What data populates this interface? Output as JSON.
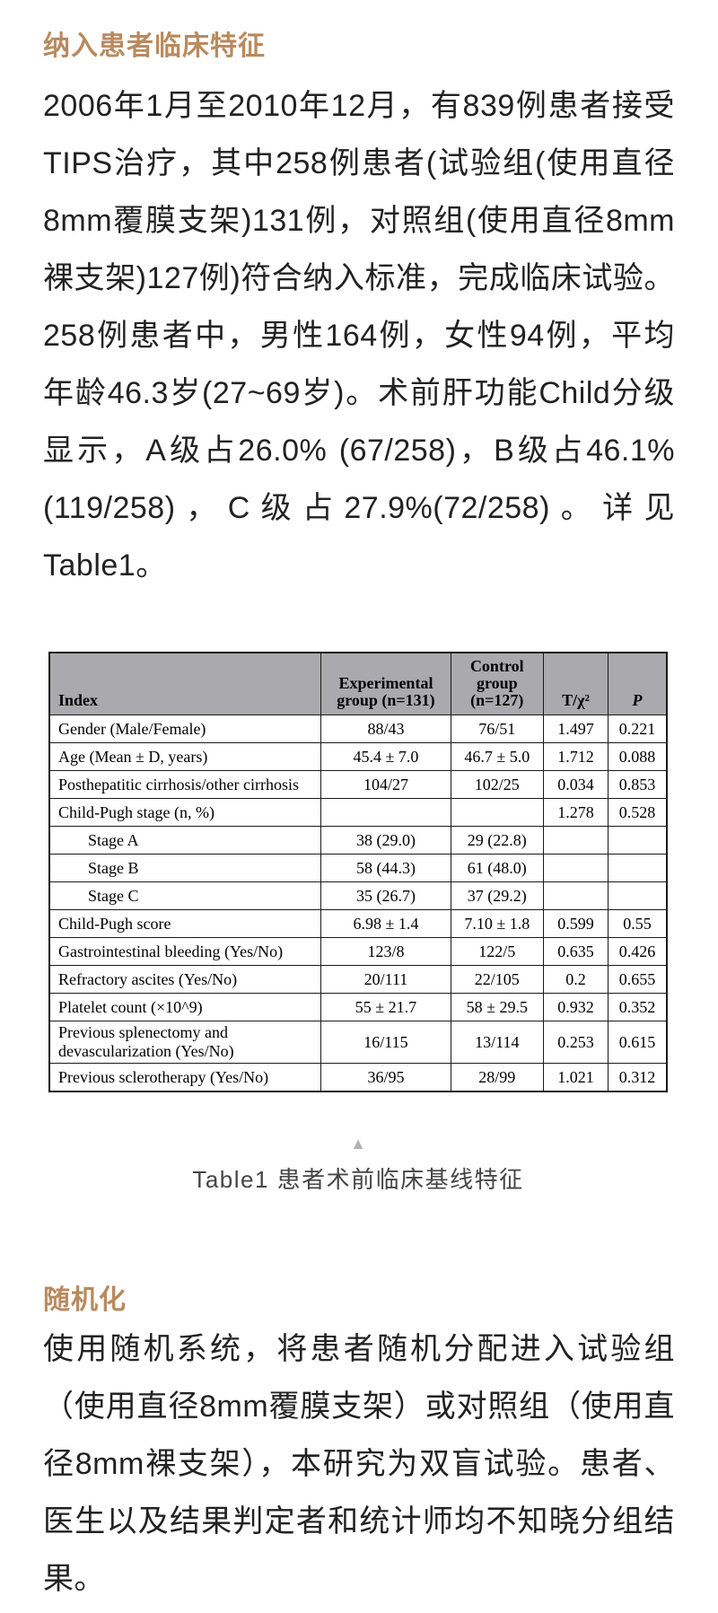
{
  "colors": {
    "heading_accent": "#b98a5e",
    "body_text": "#1f1f1f",
    "table_border": "#1a1a1a",
    "table_header_bg": "#aaa9ad",
    "caption_text": "#454545",
    "triangle": "#b2b2b2"
  },
  "icons": {
    "collapse_triangle": "▲"
  },
  "section1": {
    "heading": "纳入患者临床特征",
    "paragraph": "2006年1月至2010年12月，有839例患者接受TIPS治疗，其中258例患者(试验组(使用直径8mm覆膜支架)131例，对照组(使用直径8mm裸支架)127例)符合纳入标准，完成临床试验。258例患者中，男性164例，女性94例，平均年龄46.3岁(27~69岁)。术前肝功能Child分级显示，A级占26.0% (67/258)，B级占46.1%(119/258)，C级占27.9%(72/258)。详见Table1。"
  },
  "table": {
    "caption": "Table1 患者术前临床基线特征",
    "headers": [
      "Index",
      "Experimental group (n=131)",
      "Control group (n=127)",
      "T/χ²",
      "P"
    ],
    "rows": [
      {
        "indent": false,
        "cells": [
          "Gender (Male/Female)",
          "88/43",
          "76/51",
          "1.497",
          "0.221"
        ]
      },
      {
        "indent": false,
        "cells": [
          "Age (Mean ± D, years)",
          "45.4 ± 7.0",
          "46.7 ± 5.0",
          "1.712",
          "0.088"
        ]
      },
      {
        "indent": false,
        "cells": [
          "Posthepatitic cirrhosis/other cirrhosis",
          "104/27",
          "102/25",
          "0.034",
          "0.853"
        ]
      },
      {
        "indent": false,
        "cells": [
          "Child-Pugh stage (n, %)",
          "",
          "",
          "1.278",
          "0.528"
        ]
      },
      {
        "indent": true,
        "cells": [
          "Stage A",
          "38 (29.0)",
          "29 (22.8)",
          "",
          ""
        ]
      },
      {
        "indent": true,
        "cells": [
          "Stage B",
          "58 (44.3)",
          "61 (48.0)",
          "",
          ""
        ]
      },
      {
        "indent": true,
        "cells": [
          "Stage C",
          "35 (26.7)",
          "37 (29.2)",
          "",
          ""
        ]
      },
      {
        "indent": false,
        "cells": [
          "Child-Pugh score",
          "6.98 ± 1.4",
          "7.10 ± 1.8",
          "0.599",
          "0.55"
        ]
      },
      {
        "indent": false,
        "cells": [
          "Gastrointestinal bleeding (Yes/No)",
          "123/8",
          "122/5",
          "0.635",
          "0.426"
        ]
      },
      {
        "indent": false,
        "cells": [
          "Refractory ascites (Yes/No)",
          "20/111",
          "22/105",
          "0.2",
          "0.655"
        ]
      },
      {
        "indent": false,
        "cells": [
          "Platelet count (×10^9)",
          "55 ± 21.7",
          "58 ± 29.5",
          "0.932",
          "0.352"
        ]
      },
      {
        "indent": false,
        "cells": [
          "Previous splenectomy and devascularization (Yes/No)",
          "16/115",
          "13/114",
          "0.253",
          "0.615"
        ]
      },
      {
        "indent": false,
        "cells": [
          "Previous sclerotherapy (Yes/No)",
          "36/95",
          "28/99",
          "1.021",
          "0.312"
        ]
      }
    ]
  },
  "section2": {
    "heading": "随机化",
    "paragraph": "使用随机系统，将患者随机分配进入试验组（使用直径8mm覆膜支架）或对照组（使用直径8mm裸支架），本研究为双盲试验。患者、医生以及结果判定者和统计师均不知晓分组结果。"
  }
}
